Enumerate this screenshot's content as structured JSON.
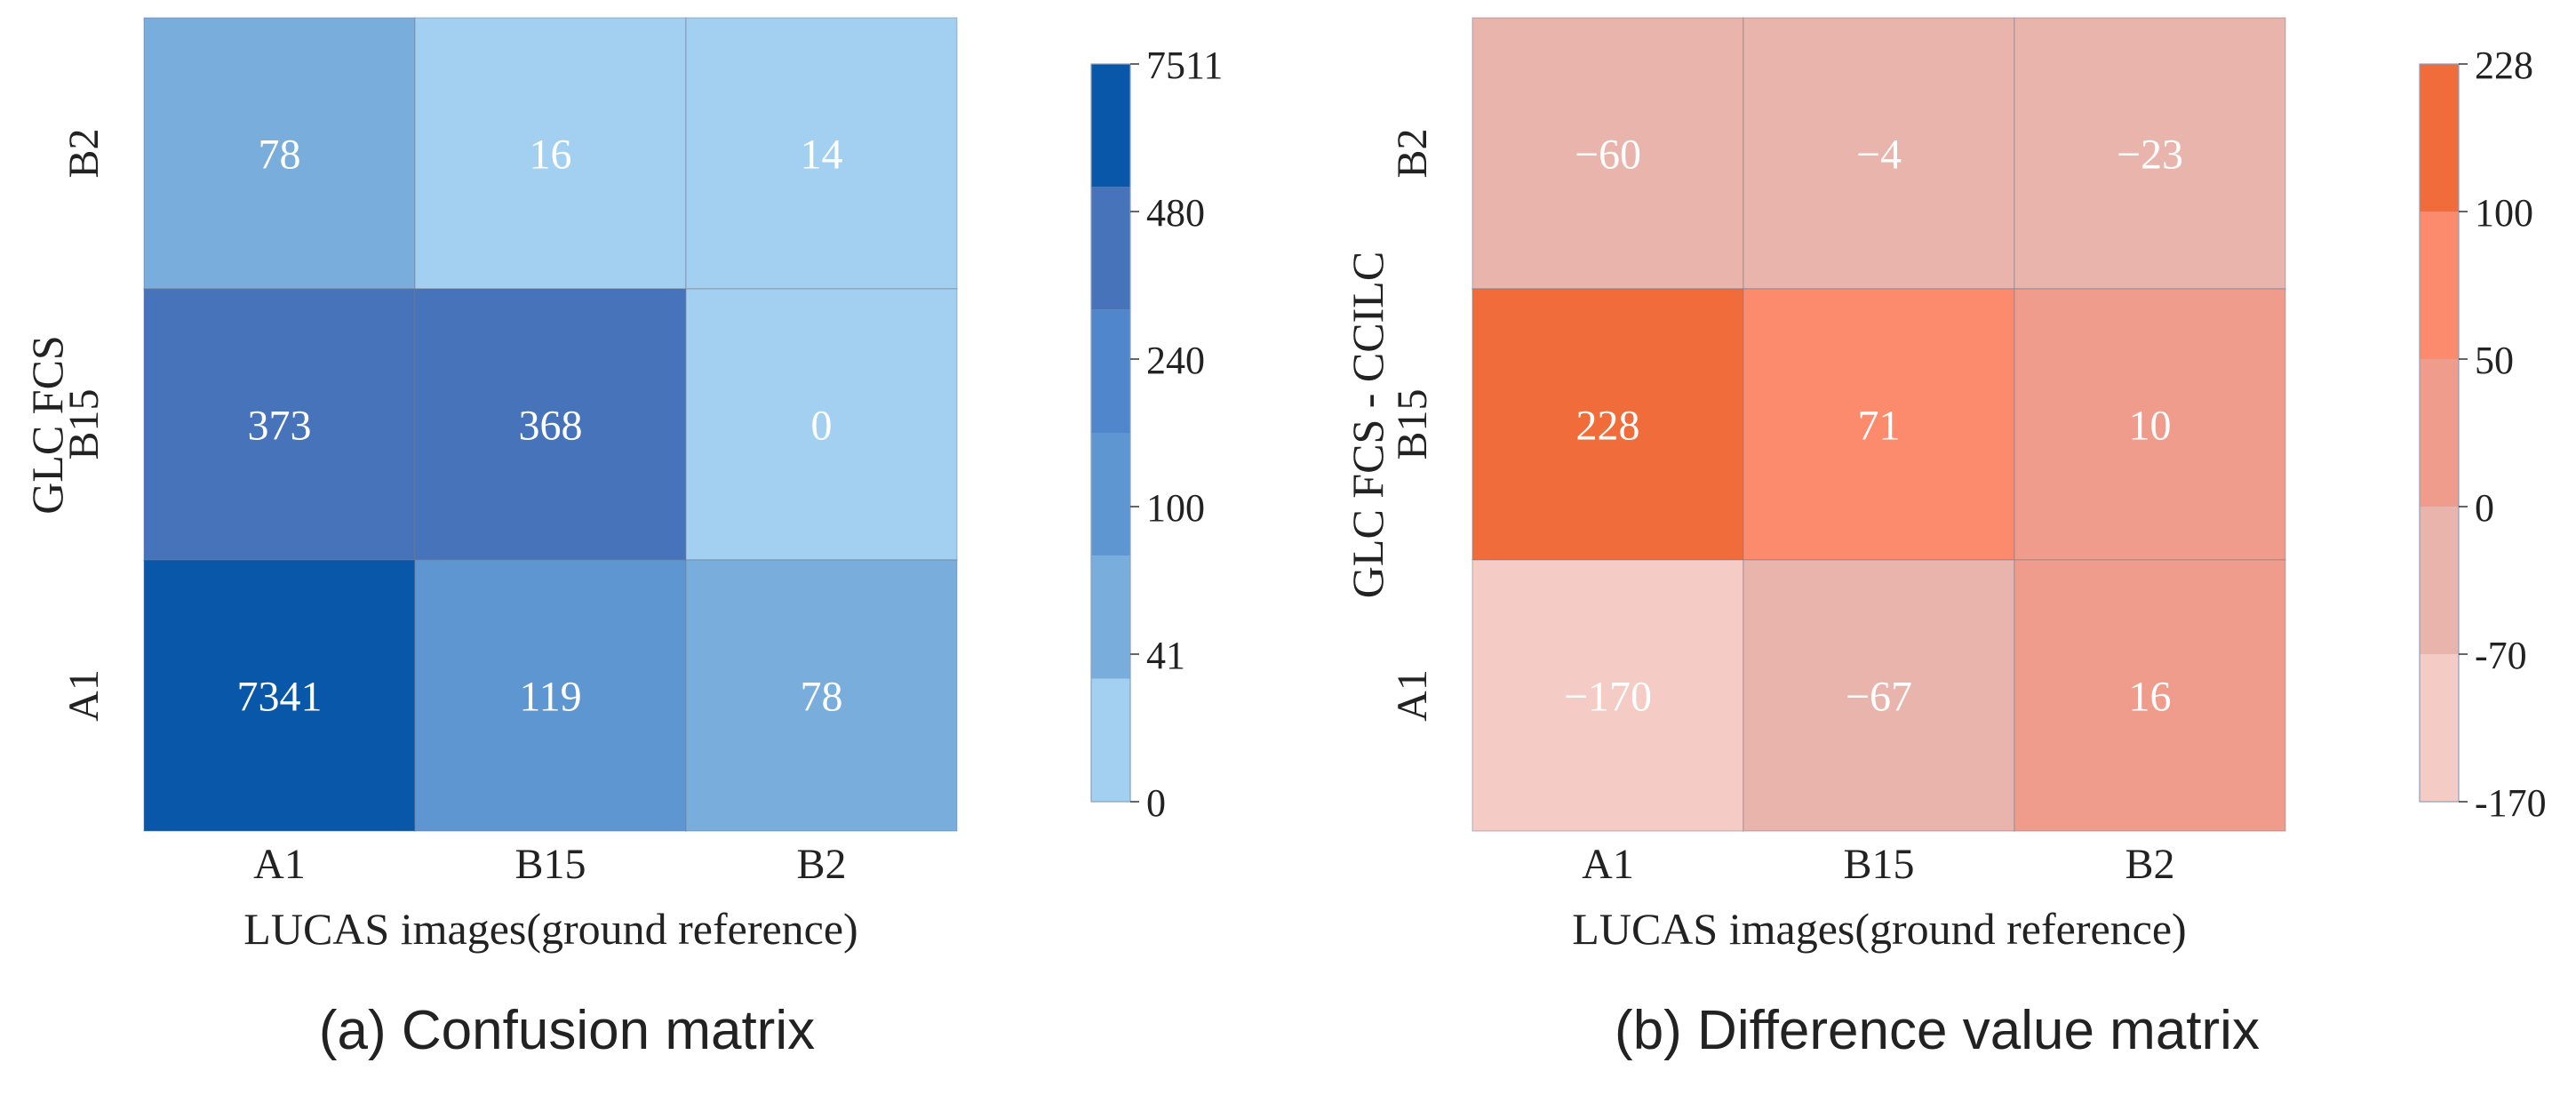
{
  "figure": {
    "panels": [
      {
        "caption": "(a)  Confusion matrix",
        "colorbar_ticks": [
          "7511",
          "480",
          "240",
          "100",
          "41",
          "0"
        ]
      },
      {
        "caption": "(b)  Difference value matrix",
        "colorbar_ticks": [
          "228",
          "100",
          "50",
          "0",
          "-70",
          "-170"
        ]
      }
    ]
  },
  "chart_data": [
    {
      "type": "heatmap",
      "title": "(a)  Confusion matrix",
      "xlabel": "LUCAS images(ground reference)",
      "ylabel": "GLC FCS",
      "x_categories": [
        "A1",
        "B15",
        "B2"
      ],
      "y_categories": [
        "B2",
        "B15",
        "A1"
      ],
      "values": [
        [
          78,
          16,
          14
        ],
        [
          373,
          368,
          0
        ],
        [
          7341,
          119,
          78
        ]
      ],
      "labels": [
        [
          "78",
          "16",
          "14"
        ],
        [
          "373",
          "368",
          "0"
        ],
        [
          "7341",
          "119",
          "78"
        ]
      ],
      "colorbar": {
        "bounds": [
          0,
          41,
          100,
          240,
          480,
          7511
        ],
        "colors": [
          "#a3d0f0",
          "#79addb",
          "#5d96d0",
          "#4f86cc",
          "#4673ba",
          "#0957a8"
        ]
      },
      "cell_colors": [
        [
          "#79addb",
          "#a3d0f0",
          "#a3d0f0"
        ],
        [
          "#4673ba",
          "#4673ba",
          "#a3d0f0"
        ],
        [
          "#0957a8",
          "#5d96d0",
          "#79addb"
        ]
      ]
    },
    {
      "type": "heatmap",
      "title": "(b)  Difference value matrix",
      "xlabel": "LUCAS images(ground reference)",
      "ylabel": "GLC FCS - CCILC",
      "x_categories": [
        "A1",
        "B15",
        "B2"
      ],
      "y_categories": [
        "B2",
        "B15",
        "A1"
      ],
      "values": [
        [
          -60,
          -4,
          -23
        ],
        [
          228,
          71,
          10
        ],
        [
          -170,
          -67,
          16
        ]
      ],
      "labels": [
        [
          "−60",
          "−4",
          "−23"
        ],
        [
          "228",
          "71",
          "10"
        ],
        [
          "−170",
          "−67",
          "16"
        ]
      ],
      "colorbar": {
        "bounds": [
          -170,
          -70,
          0,
          50,
          100,
          228
        ],
        "colors": [
          "#f4cbc5",
          "#e9b4ab",
          "#ef9c8d",
          "#fc8b6d",
          "#f06c3a"
        ]
      },
      "cell_colors": [
        [
          "#e9b4ab",
          "#e9b4ab",
          "#e9b4ab"
        ],
        [
          "#f06c3a",
          "#fc8b6d",
          "#ef9c8d"
        ],
        [
          "#f4cbc5",
          "#e9b4ab",
          "#ef9c8d"
        ]
      ]
    }
  ]
}
